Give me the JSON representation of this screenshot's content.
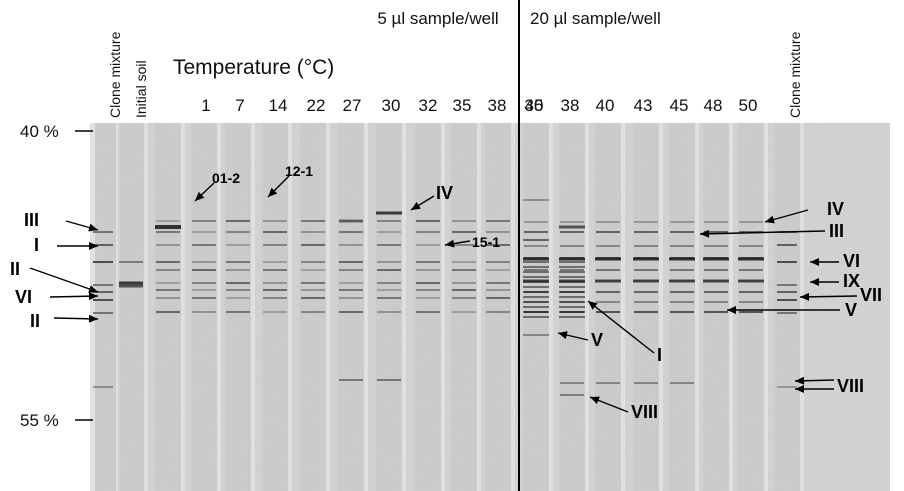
{
  "headers": {
    "left_volume": "5 µl sample/well",
    "right_volume": "20 µl sample/well",
    "temperature_title": "Temperature (°C)",
    "clone_mixture": "Clone mixture",
    "initial_soil": "Initial soil"
  },
  "temps_left": [
    "1",
    "7",
    "14",
    "22",
    "27",
    "30",
    "32",
    "35",
    "38",
    "40"
  ],
  "temps_right": [
    "35",
    "38",
    "40",
    "43",
    "45",
    "48",
    "50"
  ],
  "gradient": {
    "top": "40 %",
    "bottom": "55 %"
  },
  "clone_labels": [
    "01-2",
    "12-1",
    "15-1"
  ],
  "band_labels_left": [
    "III",
    "I",
    "II",
    "VI",
    "II"
  ],
  "band_labels_middle": [
    "IV",
    "V",
    "I",
    "VIII"
  ],
  "band_labels_right": [
    "IV",
    "III",
    "VI",
    "IX",
    "VII",
    "V",
    "VIII"
  ]
}
